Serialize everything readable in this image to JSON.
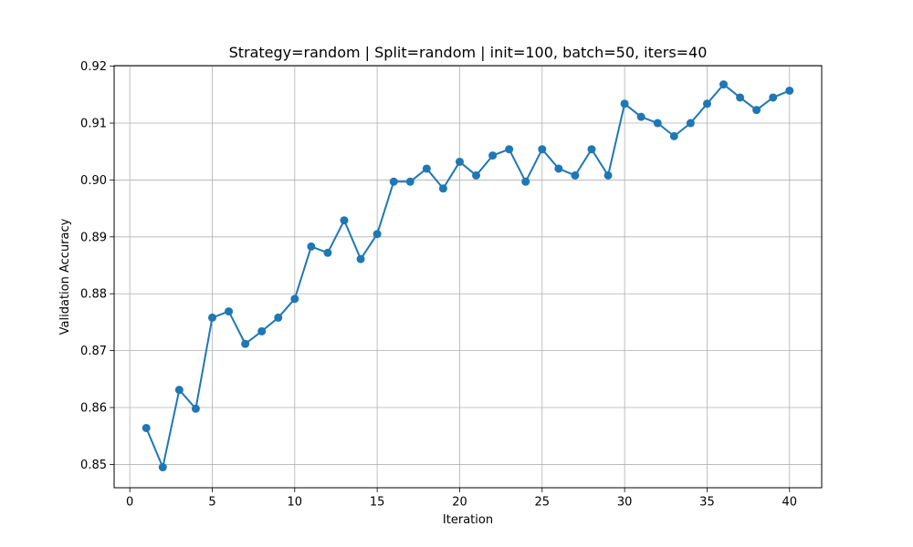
{
  "chart_data": {
    "type": "line",
    "title": "Strategy=random | Split=random | init=100, batch=50, iters=40",
    "xlabel": "Iteration",
    "ylabel": "Validation Accuracy",
    "xlim": [
      -0.95,
      41.95
    ],
    "ylim": [
      0.8459,
      0.9201
    ],
    "xticks": [
      0,
      5,
      10,
      15,
      20,
      25,
      30,
      35,
      40
    ],
    "xtick_labels": [
      "0",
      "5",
      "10",
      "15",
      "20",
      "25",
      "30",
      "35",
      "40"
    ],
    "yticks": [
      0.85,
      0.86,
      0.87,
      0.88,
      0.89,
      0.9,
      0.91,
      0.92
    ],
    "ytick_labels": [
      "0.85",
      "0.86",
      "0.87",
      "0.88",
      "0.89",
      "0.90",
      "0.91",
      "0.92"
    ],
    "grid": true,
    "marker": "circle",
    "color": "#1f77b4",
    "x": [
      1,
      2,
      3,
      4,
      5,
      6,
      7,
      8,
      9,
      10,
      11,
      12,
      13,
      14,
      15,
      16,
      17,
      18,
      19,
      20,
      21,
      22,
      23,
      24,
      25,
      26,
      27,
      28,
      29,
      30,
      31,
      32,
      33,
      34,
      35,
      36,
      37,
      38,
      39,
      40
    ],
    "series": [
      {
        "values": [
          0.8564,
          0.8495,
          0.8631,
          0.8598,
          0.8758,
          0.8769,
          0.8712,
          0.8734,
          0.8758,
          0.8791,
          0.8883,
          0.8872,
          0.8929,
          0.8861,
          0.8905,
          0.8997,
          0.8997,
          0.902,
          0.8985,
          0.9032,
          0.9008,
          0.9043,
          0.9054,
          0.8997,
          0.9054,
          0.902,
          0.9008,
          0.9054,
          0.9008,
          0.9134,
          0.9111,
          0.91,
          0.9077,
          0.91,
          0.9134,
          0.9168,
          0.9145,
          0.9123,
          0.9145,
          0.9157
        ]
      }
    ]
  }
}
